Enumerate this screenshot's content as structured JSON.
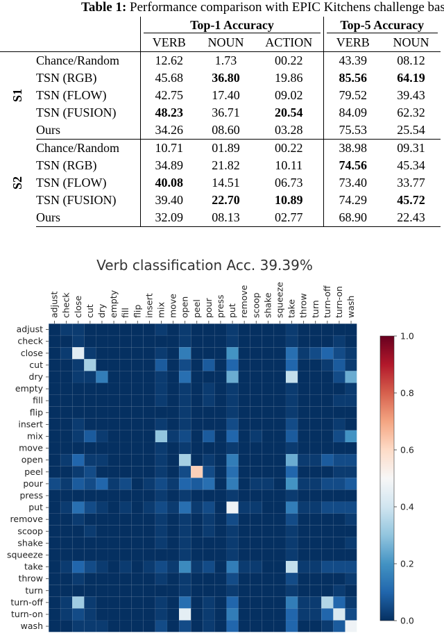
{
  "table": {
    "caption_label": "Table 1:",
    "caption_text": "Performance comparison with EPIC Kitchens challenge baseline",
    "group_headers": [
      "Top-1 Accuracy",
      "Top-5 Accuracy"
    ],
    "column_headers": [
      "VERB",
      "NOUN",
      "ACTION",
      "VERB",
      "NOUN"
    ],
    "groups": [
      {
        "label": "S1",
        "rows": [
          {
            "method": "Chance/Random",
            "cells": [
              "12.62",
              "1.73",
              "00.22",
              "43.39",
              "08.12"
            ],
            "bold": [
              false,
              false,
              false,
              false,
              false
            ]
          },
          {
            "method": "TSN (RGB)",
            "cells": [
              "45.68",
              "36.80",
              "19.86",
              "85.56",
              "64.19"
            ],
            "bold": [
              false,
              true,
              false,
              true,
              true
            ]
          },
          {
            "method": "TSN (FLOW)",
            "cells": [
              "42.75",
              "17.40",
              "09.02",
              "79.52",
              "39.43"
            ],
            "bold": [
              false,
              false,
              false,
              false,
              false
            ]
          },
          {
            "method": "TSN (FUSION)",
            "cells": [
              "48.23",
              "36.71",
              "20.54",
              "84.09",
              "62.32"
            ],
            "bold": [
              true,
              false,
              true,
              false,
              false
            ]
          },
          {
            "method": "Ours",
            "cells": [
              "34.26",
              "08.60",
              "03.28",
              "75.53",
              "25.54"
            ],
            "bold": [
              false,
              false,
              false,
              false,
              false
            ]
          }
        ]
      },
      {
        "label": "S2",
        "rows": [
          {
            "method": "Chance/Random",
            "cells": [
              "10.71",
              "01.89",
              "00.22",
              "38.98",
              "09.31"
            ],
            "bold": [
              false,
              false,
              false,
              false,
              false
            ]
          },
          {
            "method": "TSN (RGB)",
            "cells": [
              "34.89",
              "21.82",
              "10.11",
              "74.56",
              "45.34"
            ],
            "bold": [
              false,
              false,
              false,
              true,
              false
            ]
          },
          {
            "method": "TSN (FLOW)",
            "cells": [
              "40.08",
              "14.51",
              "06.73",
              "73.40",
              "33.77"
            ],
            "bold": [
              true,
              false,
              false,
              false,
              false
            ]
          },
          {
            "method": "TSN (FUSION)",
            "cells": [
              "39.40",
              "22.70",
              "10.89",
              "74.29",
              "45.72"
            ],
            "bold": [
              false,
              true,
              true,
              false,
              true
            ]
          },
          {
            "method": "Ours",
            "cells": [
              "32.09",
              "08.13",
              "02.77",
              "68.90",
              "22.43"
            ],
            "bold": [
              false,
              false,
              false,
              false,
              false
            ]
          }
        ]
      }
    ]
  },
  "chart_data": {
    "type": "heatmap",
    "title": "Verb classification Acc. 39.39%",
    "labels": [
      "adjust",
      "check",
      "close",
      "cut",
      "dry",
      "empty",
      "fill",
      "flip",
      "insert",
      "mix",
      "move",
      "open",
      "peel",
      "pour",
      "press",
      "put",
      "remove",
      "scoop",
      "shake",
      "squeeze",
      "take",
      "throw",
      "turn",
      "turn-off",
      "turn-on",
      "wash"
    ],
    "colorbar": {
      "min": 0.0,
      "max": 1.0,
      "ticks": [
        0.0,
        0.2,
        0.4,
        0.6,
        0.8,
        1.0
      ],
      "tick_labels": [
        "0.0",
        "0.2",
        "0.4",
        "0.6",
        "0.8",
        "1.0"
      ],
      "colormap": "RdBu_r"
    },
    "matrix": [
      [
        0.0,
        0.02,
        0.02,
        0.0,
        0.0,
        0.0,
        0.0,
        0.0,
        0.0,
        0.02,
        0.0,
        0.02,
        0.0,
        0.0,
        0.0,
        0.02,
        0.0,
        0.0,
        0.0,
        0.0,
        0.02,
        0.0,
        0.0,
        0.0,
        0.0,
        0.0
      ],
      [
        0.0,
        0.0,
        0.02,
        0.0,
        0.0,
        0.0,
        0.0,
        0.0,
        0.0,
        0.0,
        0.0,
        0.02,
        0.0,
        0.0,
        0.0,
        0.02,
        0.0,
        0.0,
        0.0,
        0.0,
        0.02,
        0.0,
        0.0,
        0.0,
        0.02,
        0.0
      ],
      [
        0.0,
        0.02,
        0.44,
        0.02,
        0.0,
        0.0,
        0.0,
        0.0,
        0.0,
        0.02,
        0.0,
        0.15,
        0.0,
        0.0,
        0.0,
        0.2,
        0.0,
        0.0,
        0.0,
        0.0,
        0.12,
        0.02,
        0.05,
        0.1,
        0.05,
        0.02
      ],
      [
        0.0,
        0.0,
        0.02,
        0.33,
        0.0,
        0.0,
        0.0,
        0.0,
        0.0,
        0.08,
        0.0,
        0.05,
        0.0,
        0.08,
        0.0,
        0.1,
        0.0,
        0.0,
        0.0,
        0.0,
        0.1,
        0.0,
        0.0,
        0.02,
        0.08,
        0.02
      ],
      [
        0.0,
        0.0,
        0.02,
        0.02,
        0.15,
        0.0,
        0.0,
        0.0,
        0.0,
        0.02,
        0.0,
        0.12,
        0.0,
        0.0,
        0.0,
        0.25,
        0.0,
        0.0,
        0.0,
        0.0,
        0.38,
        0.0,
        0.0,
        0.0,
        0.05,
        0.25
      ],
      [
        0.0,
        0.0,
        0.0,
        0.0,
        0.0,
        0.0,
        0.0,
        0.0,
        0.0,
        0.02,
        0.0,
        0.02,
        0.0,
        0.02,
        0.0,
        0.02,
        0.0,
        0.0,
        0.0,
        0.0,
        0.02,
        0.0,
        0.0,
        0.0,
        0.0,
        0.02
      ],
      [
        0.0,
        0.0,
        0.0,
        0.0,
        0.0,
        0.0,
        0.0,
        0.0,
        0.0,
        0.02,
        0.0,
        0.02,
        0.0,
        0.02,
        0.0,
        0.02,
        0.0,
        0.0,
        0.0,
        0.0,
        0.02,
        0.0,
        0.0,
        0.0,
        0.02,
        0.02
      ],
      [
        0.0,
        0.0,
        0.0,
        0.0,
        0.0,
        0.0,
        0.0,
        0.0,
        0.0,
        0.0,
        0.0,
        0.02,
        0.0,
        0.0,
        0.0,
        0.02,
        0.0,
        0.0,
        0.0,
        0.0,
        0.02,
        0.0,
        0.0,
        0.0,
        0.0,
        0.0
      ],
      [
        0.0,
        0.0,
        0.02,
        0.0,
        0.0,
        0.0,
        0.0,
        0.0,
        0.0,
        0.02,
        0.0,
        0.02,
        0.0,
        0.0,
        0.0,
        0.05,
        0.0,
        0.0,
        0.0,
        0.0,
        0.05,
        0.0,
        0.0,
        0.0,
        0.02,
        0.0
      ],
      [
        0.0,
        0.0,
        0.02,
        0.08,
        0.02,
        0.0,
        0.0,
        0.0,
        0.0,
        0.3,
        0.02,
        0.05,
        0.0,
        0.08,
        0.0,
        0.1,
        0.0,
        0.02,
        0.0,
        0.0,
        0.08,
        0.0,
        0.0,
        0.0,
        0.05,
        0.2
      ],
      [
        0.0,
        0.0,
        0.0,
        0.0,
        0.0,
        0.0,
        0.0,
        0.0,
        0.0,
        0.02,
        0.0,
        0.02,
        0.0,
        0.0,
        0.0,
        0.02,
        0.0,
        0.0,
        0.0,
        0.0,
        0.02,
        0.0,
        0.0,
        0.0,
        0.0,
        0.0
      ],
      [
        0.0,
        0.02,
        0.1,
        0.02,
        0.02,
        0.0,
        0.0,
        0.0,
        0.0,
        0.02,
        0.0,
        0.33,
        0.0,
        0.02,
        0.0,
        0.15,
        0.0,
        0.0,
        0.0,
        0.0,
        0.25,
        0.02,
        0.02,
        0.08,
        0.05,
        0.05
      ],
      [
        0.0,
        0.0,
        0.02,
        0.05,
        0.0,
        0.0,
        0.0,
        0.0,
        0.0,
        0.02,
        0.0,
        0.05,
        0.62,
        0.05,
        0.0,
        0.12,
        0.0,
        0.0,
        0.0,
        0.0,
        0.1,
        0.0,
        0.0,
        0.0,
        0.02,
        0.02
      ],
      [
        0.05,
        0.02,
        0.08,
        0.05,
        0.1,
        0.02,
        0.05,
        0.0,
        0.02,
        0.05,
        0.02,
        0.1,
        0.08,
        0.12,
        0.0,
        0.15,
        0.0,
        0.02,
        0.02,
        0.0,
        0.2,
        0.02,
        0.02,
        0.05,
        0.05,
        0.08
      ],
      [
        0.0,
        0.0,
        0.0,
        0.0,
        0.0,
        0.0,
        0.0,
        0.0,
        0.0,
        0.02,
        0.0,
        0.02,
        0.0,
        0.0,
        0.0,
        0.02,
        0.0,
        0.0,
        0.0,
        0.0,
        0.02,
        0.0,
        0.0,
        0.0,
        0.0,
        0.0
      ],
      [
        0.0,
        0.02,
        0.12,
        0.05,
        0.02,
        0.0,
        0.02,
        0.0,
        0.02,
        0.05,
        0.02,
        0.12,
        0.02,
        0.05,
        0.0,
        0.48,
        0.02,
        0.02,
        0.0,
        0.0,
        0.15,
        0.02,
        0.02,
        0.05,
        0.05,
        0.05
      ],
      [
        0.0,
        0.0,
        0.02,
        0.0,
        0.0,
        0.0,
        0.0,
        0.0,
        0.0,
        0.02,
        0.0,
        0.02,
        0.0,
        0.02,
        0.0,
        0.05,
        0.0,
        0.0,
        0.0,
        0.0,
        0.05,
        0.0,
        0.0,
        0.0,
        0.0,
        0.02
      ],
      [
        0.0,
        0.0,
        0.0,
        0.02,
        0.0,
        0.0,
        0.0,
        0.0,
        0.0,
        0.02,
        0.0,
        0.02,
        0.0,
        0.02,
        0.0,
        0.02,
        0.0,
        0.0,
        0.0,
        0.0,
        0.02,
        0.0,
        0.0,
        0.0,
        0.0,
        0.0
      ],
      [
        0.0,
        0.0,
        0.0,
        0.0,
        0.0,
        0.0,
        0.0,
        0.0,
        0.0,
        0.02,
        0.0,
        0.02,
        0.0,
        0.0,
        0.0,
        0.02,
        0.0,
        0.0,
        0.0,
        0.0,
        0.02,
        0.0,
        0.0,
        0.0,
        0.0,
        0.02
      ],
      [
        0.0,
        0.0,
        0.0,
        0.0,
        0.0,
        0.0,
        0.0,
        0.0,
        0.0,
        0.0,
        0.0,
        0.02,
        0.0,
        0.0,
        0.0,
        0.02,
        0.0,
        0.0,
        0.0,
        0.0,
        0.02,
        0.0,
        0.0,
        0.0,
        0.0,
        0.0
      ],
      [
        0.0,
        0.02,
        0.1,
        0.05,
        0.02,
        0.0,
        0.02,
        0.0,
        0.02,
        0.05,
        0.02,
        0.18,
        0.02,
        0.05,
        0.0,
        0.15,
        0.02,
        0.02,
        0.0,
        0.0,
        0.38,
        0.02,
        0.02,
        0.05,
        0.05,
        0.05
      ],
      [
        0.0,
        0.0,
        0.02,
        0.0,
        0.0,
        0.0,
        0.0,
        0.0,
        0.0,
        0.02,
        0.0,
        0.02,
        0.0,
        0.0,
        0.0,
        0.05,
        0.0,
        0.0,
        0.0,
        0.0,
        0.05,
        0.0,
        0.0,
        0.0,
        0.0,
        0.02
      ],
      [
        0.0,
        0.0,
        0.0,
        0.0,
        0.0,
        0.0,
        0.0,
        0.0,
        0.0,
        0.0,
        0.0,
        0.02,
        0.0,
        0.0,
        0.0,
        0.02,
        0.0,
        0.0,
        0.0,
        0.0,
        0.02,
        0.0,
        0.0,
        0.0,
        0.02,
        0.0
      ],
      [
        0.0,
        0.02,
        0.32,
        0.02,
        0.0,
        0.0,
        0.0,
        0.0,
        0.0,
        0.02,
        0.0,
        0.12,
        0.0,
        0.02,
        0.0,
        0.1,
        0.0,
        0.0,
        0.0,
        0.0,
        0.15,
        0.02,
        0.02,
        0.35,
        0.1,
        0.02
      ],
      [
        0.0,
        0.02,
        0.05,
        0.02,
        0.0,
        0.0,
        0.0,
        0.0,
        0.0,
        0.02,
        0.0,
        0.45,
        0.0,
        0.02,
        0.0,
        0.15,
        0.0,
        0.0,
        0.0,
        0.0,
        0.1,
        0.02,
        0.02,
        0.1,
        0.42,
        0.05
      ],
      [
        0.0,
        0.0,
        0.02,
        0.02,
        0.02,
        0.0,
        0.0,
        0.0,
        0.0,
        0.05,
        0.0,
        0.05,
        0.0,
        0.02,
        0.0,
        0.1,
        0.0,
        0.0,
        0.0,
        0.0,
        0.1,
        0.0,
        0.0,
        0.02,
        0.08,
        0.48
      ]
    ]
  }
}
